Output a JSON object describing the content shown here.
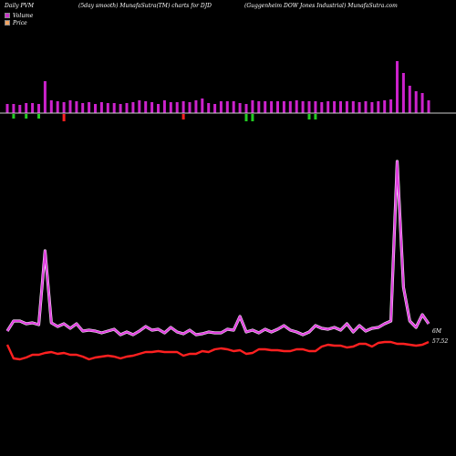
{
  "header": {
    "left": "Daily PVM",
    "mid1": "(5day smooth) MunafaSutra(TM) charts for DJD",
    "right": "(Guggenheim DOW Jones Industrial) MunafaSutra.com"
  },
  "legend": [
    {
      "label": "Volume",
      "color": "#cc33cc"
    },
    {
      "label": "Price",
      "color": "#f4a460"
    }
  ],
  "colors": {
    "volume_line": "#e040e0",
    "price_line": "#ff2020",
    "bar_up": "#cc22cc",
    "bar_down_red": "#ff2020",
    "bar_down_green": "#22cc22"
  },
  "chart_data": {
    "type": "line",
    "bars": {
      "values": [
        10,
        10,
        9,
        11,
        11,
        10,
        35,
        14,
        13,
        12,
        14,
        13,
        11,
        12,
        10,
        12,
        11,
        11,
        10,
        11,
        12,
        14,
        13,
        12,
        10,
        14,
        12,
        12,
        13,
        12,
        14,
        16,
        11,
        10,
        13,
        13,
        13,
        11,
        10,
        14,
        13,
        13,
        13,
        13,
        13,
        13,
        14,
        13,
        13,
        13,
        12,
        13,
        13,
        13,
        13,
        13,
        12,
        13,
        12,
        13,
        14,
        15,
        57,
        44,
        30,
        24,
        22,
        14
      ],
      "down": [
        0,
        2,
        0,
        2,
        0,
        2,
        0,
        0,
        0,
        1,
        0,
        0,
        0,
        0,
        0,
        0,
        0,
        0,
        0,
        0,
        0,
        0,
        0,
        0,
        0,
        0,
        0,
        0,
        1,
        0,
        0,
        0,
        0,
        0,
        0,
        0,
        0,
        0,
        2,
        2,
        0,
        0,
        0,
        0,
        0,
        0,
        0,
        0,
        2,
        2,
        0,
        0,
        0,
        0,
        0,
        0,
        0,
        0,
        0,
        0,
        0,
        0,
        0,
        0,
        0,
        0,
        0,
        0
      ],
      "down_depth": [
        0,
        5,
        0,
        5,
        0,
        5,
        0,
        0,
        0,
        8,
        0,
        0,
        0,
        0,
        0,
        0,
        0,
        0,
        0,
        0,
        0,
        0,
        0,
        0,
        0,
        0,
        0,
        0,
        6,
        0,
        0,
        0,
        0,
        0,
        0,
        0,
        0,
        0,
        8,
        8,
        0,
        0,
        0,
        0,
        0,
        0,
        0,
        0,
        6,
        6,
        0,
        0,
        0,
        0,
        0,
        0,
        0,
        0,
        0,
        0,
        0,
        0,
        0,
        0,
        0,
        0,
        0,
        0
      ]
    },
    "volume": [
      62,
      73,
      73,
      70,
      71,
      69,
      150,
      71,
      67,
      70,
      65,
      70,
      62,
      63,
      62,
      60,
      62,
      64,
      58,
      61,
      58,
      62,
      67,
      63,
      64,
      60,
      66,
      61,
      59,
      63,
      58,
      59,
      61,
      60,
      60,
      64,
      63,
      78,
      61,
      63,
      60,
      64,
      61,
      64,
      68,
      63,
      61,
      58,
      61,
      68,
      65,
      64,
      66,
      63,
      70,
      61,
      68,
      62,
      65,
      66,
      70,
      73,
      248,
      110,
      73,
      66,
      80,
      70
    ],
    "price": [
      55,
      40,
      39,
      41,
      44,
      44,
      46,
      47,
      45,
      46,
      44,
      44,
      42,
      39,
      41,
      42,
      43,
      42,
      40,
      42,
      43,
      45,
      47,
      47,
      48,
      47,
      47,
      47,
      43,
      45,
      45,
      48,
      47,
      50,
      51,
      50,
      48,
      49,
      45,
      46,
      50,
      50,
      49,
      49,
      48,
      48,
      50,
      50,
      48,
      48,
      53,
      55,
      54,
      54,
      52,
      53,
      56,
      56,
      53,
      57,
      58,
      58,
      56,
      56,
      55,
      54,
      55,
      58
    ],
    "labels": [
      "6M",
      "57.52"
    ]
  }
}
